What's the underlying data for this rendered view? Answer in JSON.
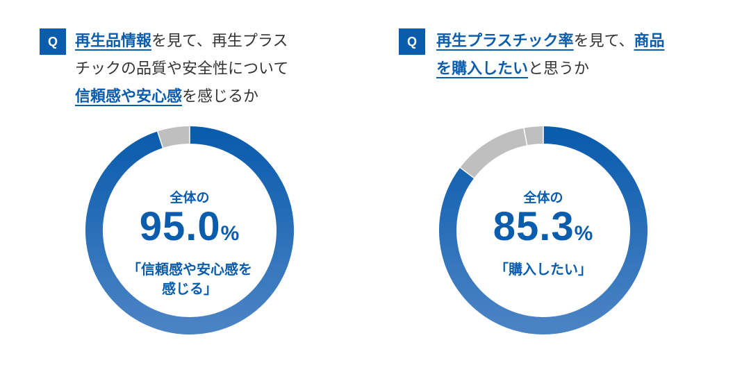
{
  "panels": [
    {
      "badge": "Q",
      "question_lines": [
        [
          {
            "text": "再生品情報",
            "hl": true
          },
          {
            "text": "を見て、再生プラス",
            "hl": false
          }
        ],
        [
          {
            "text": "チックの品質や安全性について",
            "hl": false
          }
        ],
        [
          {
            "text": "信頼感や安心感",
            "hl": true
          },
          {
            "text": "を感じるか",
            "hl": false
          }
        ]
      ],
      "center": {
        "prefix": "全体の",
        "number": "95.0",
        "unit": "%",
        "desc_lines": [
          "「信頼感や安心感を",
          "感じる」"
        ]
      }
    },
    {
      "badge": "Q",
      "question_lines": [
        [
          {
            "text": "再生プラスチック率",
            "hl": true
          },
          {
            "text": "を見て、",
            "hl": false
          },
          {
            "text": "商品",
            "hl": true
          }
        ],
        [
          {
            "text": "を購入したい",
            "hl": true
          },
          {
            "text": "と思うか",
            "hl": false
          }
        ]
      ],
      "center": {
        "prefix": "全体の",
        "number": "85.3",
        "unit": "%",
        "desc_lines": [
          "「購入したい」"
        ]
      }
    }
  ],
  "chart_data": [
    {
      "type": "pie",
      "style": "donut",
      "slices": [
        {
          "value": 95.0,
          "color": "#0a5cad"
        },
        {
          "value": 5.0,
          "color": "#bfbfbf"
        }
      ],
      "gradient": {
        "start": "#0a5cad",
        "end": "#4a83c4"
      }
    },
    {
      "type": "pie",
      "style": "donut",
      "slices": [
        {
          "value": 85.3,
          "color": "#0a5cad"
        },
        {
          "value": 11.7,
          "color": "#bfbfbf"
        },
        {
          "value": 3.0,
          "color": "#bfbfbf"
        }
      ],
      "gradient": {
        "start": "#0a5cad",
        "end": "#4a83c4"
      }
    }
  ]
}
